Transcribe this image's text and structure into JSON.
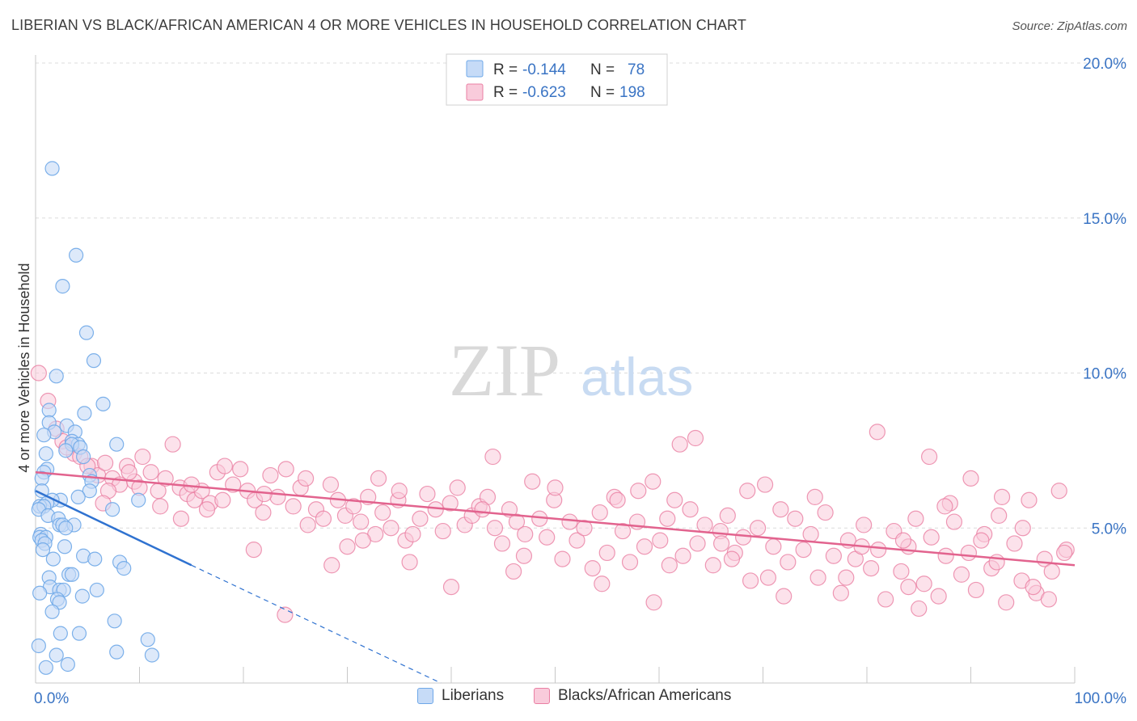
{
  "title": "LIBERIAN VS BLACK/AFRICAN AMERICAN 4 OR MORE VEHICLES IN HOUSEHOLD CORRELATION CHART",
  "source": "Source: ZipAtlas.com",
  "watermark": {
    "zip": "ZIP",
    "atlas": "atlas"
  },
  "stats_legend": [
    {
      "r_label": "R = ",
      "r_value": "-0.144",
      "n_label": "N = ",
      "n_value": "78",
      "color": "#6fa8e8",
      "fill": "#c6dbf7"
    },
    {
      "r_label": "R = ",
      "r_value": "-0.623",
      "n_label": "N = ",
      "n_value": "198",
      "color": "#ea7fa3",
      "fill": "#f9cbdb"
    }
  ],
  "chart_data": {
    "type": "scatter",
    "title": "LIBERIAN VS BLACK/AFRICAN AMERICAN 4 OR MORE VEHICLES IN HOUSEHOLD CORRELATION CHART",
    "xlabel": "",
    "ylabel": "4 or more Vehicles in Household",
    "xlim": [
      0,
      100
    ],
    "ylim": [
      0,
      20
    ],
    "x_tick_labels": [
      "0.0%",
      "100.0%"
    ],
    "y_ticks": [
      5,
      10,
      15,
      20
    ],
    "y_tick_labels": [
      "5.0%",
      "10.0%",
      "15.0%",
      "20.0%"
    ],
    "grid": true,
    "legend_position": "bottom",
    "series": [
      {
        "name": "Liberians",
        "color": "#6fa8e8",
        "fill": "#c6dbf7",
        "trend": {
          "x": [
            0,
            15
          ],
          "y": [
            6.2,
            3.8
          ],
          "dashed_to": [
            39,
            0
          ]
        },
        "points": [
          [
            1.6,
            16.6
          ],
          [
            3.9,
            13.8
          ],
          [
            2.6,
            12.8
          ],
          [
            4.9,
            11.3
          ],
          [
            5.6,
            10.4
          ],
          [
            2.0,
            9.9
          ],
          [
            6.5,
            9.0
          ],
          [
            1.3,
            8.8
          ],
          [
            4.7,
            8.7
          ],
          [
            1.3,
            8.4
          ],
          [
            3.0,
            8.3
          ],
          [
            1.8,
            8.1
          ],
          [
            0.8,
            8.0
          ],
          [
            3.8,
            8.1
          ],
          [
            3.5,
            7.8
          ],
          [
            7.8,
            7.7
          ],
          [
            4.1,
            7.7
          ],
          [
            3.5,
            7.7
          ],
          [
            4.3,
            7.6
          ],
          [
            2.9,
            7.5
          ],
          [
            1.0,
            7.4
          ],
          [
            4.6,
            7.3
          ],
          [
            1.1,
            6.9
          ],
          [
            0.8,
            6.8
          ],
          [
            0.6,
            6.6
          ],
          [
            5.2,
            6.7
          ],
          [
            5.4,
            6.5
          ],
          [
            0.6,
            6.2
          ],
          [
            5.2,
            6.2
          ],
          [
            4.1,
            6.0
          ],
          [
            2.4,
            5.9
          ],
          [
            1.6,
            5.9
          ],
          [
            1.1,
            5.8
          ],
          [
            0.4,
            5.7
          ],
          [
            0.8,
            5.7
          ],
          [
            0.3,
            5.6
          ],
          [
            7.4,
            5.6
          ],
          [
            9.9,
            5.9
          ],
          [
            1.2,
            5.4
          ],
          [
            2.2,
            5.3
          ],
          [
            2.3,
            5.1
          ],
          [
            2.6,
            5.1
          ],
          [
            3.7,
            5.1
          ],
          [
            2.9,
            5.0
          ],
          [
            0.5,
            4.8
          ],
          [
            0.4,
            4.7
          ],
          [
            1.0,
            4.7
          ],
          [
            0.6,
            4.6
          ],
          [
            0.9,
            4.5
          ],
          [
            0.7,
            4.3
          ],
          [
            2.8,
            4.4
          ],
          [
            4.6,
            4.1
          ],
          [
            5.7,
            4.0
          ],
          [
            1.7,
            4.0
          ],
          [
            8.1,
            3.9
          ],
          [
            8.5,
            3.7
          ],
          [
            3.2,
            3.5
          ],
          [
            3.5,
            3.5
          ],
          [
            1.3,
            3.4
          ],
          [
            1.4,
            3.1
          ],
          [
            2.3,
            3.0
          ],
          [
            2.7,
            3.0
          ],
          [
            5.9,
            3.0
          ],
          [
            0.4,
            2.9
          ],
          [
            4.5,
            2.8
          ],
          [
            2.1,
            2.7
          ],
          [
            2.3,
            2.6
          ],
          [
            1.6,
            2.3
          ],
          [
            7.6,
            2.0
          ],
          [
            2.4,
            1.6
          ],
          [
            4.2,
            1.6
          ],
          [
            10.8,
            1.4
          ],
          [
            7.8,
            1.0
          ],
          [
            11.2,
            0.9
          ],
          [
            2.0,
            0.9
          ],
          [
            1.0,
            0.5
          ],
          [
            0.3,
            1.2
          ],
          [
            3.1,
            0.6
          ]
        ]
      },
      {
        "name": "Blacks/African Americans",
        "color": "#ea7fa3",
        "fill": "#f9cbdb",
        "trend": {
          "x": [
            0,
            100
          ],
          "y": [
            6.8,
            3.8
          ]
        },
        "points": [
          [
            0.3,
            10.0
          ],
          [
            1.2,
            9.1
          ],
          [
            2.0,
            8.2
          ],
          [
            2.6,
            7.8
          ],
          [
            3.7,
            7.4
          ],
          [
            3.0,
            7.6
          ],
          [
            4.3,
            7.3
          ],
          [
            5.4,
            7.0
          ],
          [
            6.0,
            6.7
          ],
          [
            6.7,
            7.1
          ],
          [
            7.4,
            6.6
          ],
          [
            8.1,
            6.4
          ],
          [
            8.8,
            7.0
          ],
          [
            9.5,
            6.5
          ],
          [
            10.3,
            7.3
          ],
          [
            11.1,
            6.8
          ],
          [
            11.8,
            6.2
          ],
          [
            12.5,
            6.6
          ],
          [
            13.2,
            7.7
          ],
          [
            13.9,
            6.3
          ],
          [
            14.6,
            6.1
          ],
          [
            15.3,
            5.9
          ],
          [
            16.0,
            6.2
          ],
          [
            16.8,
            5.8
          ],
          [
            17.5,
            6.8
          ],
          [
            18.2,
            7.0
          ],
          [
            19.0,
            6.4
          ],
          [
            19.7,
            6.9
          ],
          [
            20.4,
            6.2
          ],
          [
            21.1,
            5.9
          ],
          [
            21.9,
            5.5
          ],
          [
            22.6,
            6.7
          ],
          [
            23.3,
            6.0
          ],
          [
            24.1,
            6.9
          ],
          [
            24.8,
            5.7
          ],
          [
            25.5,
            6.3
          ],
          [
            26.2,
            5.1
          ],
          [
            27.0,
            5.6
          ],
          [
            27.7,
            5.3
          ],
          [
            28.4,
            6.4
          ],
          [
            29.1,
            5.9
          ],
          [
            29.8,
            5.4
          ],
          [
            30.6,
            5.7
          ],
          [
            31.3,
            5.2
          ],
          [
            32.0,
            6.0
          ],
          [
            32.7,
            4.8
          ],
          [
            33.4,
            5.5
          ],
          [
            34.2,
            5.0
          ],
          [
            34.9,
            5.9
          ],
          [
            35.6,
            4.6
          ],
          [
            36.3,
            4.8
          ],
          [
            37.0,
            5.3
          ],
          [
            37.7,
            6.1
          ],
          [
            38.5,
            5.6
          ],
          [
            39.2,
            4.9
          ],
          [
            39.9,
            5.8
          ],
          [
            40.6,
            6.3
          ],
          [
            41.3,
            5.1
          ],
          [
            42.0,
            5.4
          ],
          [
            42.7,
            5.7
          ],
          [
            43.5,
            6.0
          ],
          [
            44.2,
            5.0
          ],
          [
            44.9,
            4.5
          ],
          [
            45.6,
            5.6
          ],
          [
            46.3,
            5.2
          ],
          [
            47.1,
            4.8
          ],
          [
            47.8,
            6.5
          ],
          [
            48.5,
            5.3
          ],
          [
            49.2,
            4.7
          ],
          [
            49.9,
            5.9
          ],
          [
            50.7,
            4.0
          ],
          [
            51.4,
            5.2
          ],
          [
            52.1,
            4.6
          ],
          [
            52.8,
            5.0
          ],
          [
            53.6,
            3.7
          ],
          [
            54.3,
            5.5
          ],
          [
            55.0,
            4.2
          ],
          [
            55.7,
            6.0
          ],
          [
            56.5,
            4.9
          ],
          [
            57.2,
            3.9
          ],
          [
            57.9,
            5.2
          ],
          [
            58.6,
            4.4
          ],
          [
            59.4,
            6.5
          ],
          [
            60.1,
            4.6
          ],
          [
            60.8,
            5.3
          ],
          [
            61.5,
            5.9
          ],
          [
            62.3,
            4.1
          ],
          [
            63.0,
            5.6
          ],
          [
            63.7,
            4.5
          ],
          [
            64.4,
            5.1
          ],
          [
            65.2,
            3.8
          ],
          [
            65.9,
            4.9
          ],
          [
            66.6,
            5.4
          ],
          [
            67.3,
            4.2
          ],
          [
            68.1,
            4.7
          ],
          [
            68.8,
            3.3
          ],
          [
            69.5,
            5.0
          ],
          [
            70.2,
            6.4
          ],
          [
            71.0,
            4.4
          ],
          [
            71.7,
            5.6
          ],
          [
            72.4,
            3.9
          ],
          [
            73.1,
            5.3
          ],
          [
            73.9,
            4.3
          ],
          [
            74.6,
            4.8
          ],
          [
            75.3,
            3.4
          ],
          [
            76.0,
            5.5
          ],
          [
            76.8,
            4.1
          ],
          [
            77.5,
            2.9
          ],
          [
            78.2,
            4.6
          ],
          [
            78.9,
            4.0
          ],
          [
            79.7,
            5.1
          ],
          [
            80.4,
            3.7
          ],
          [
            81.1,
            4.3
          ],
          [
            81.8,
            2.7
          ],
          [
            82.6,
            4.9
          ],
          [
            83.3,
            3.6
          ],
          [
            84.0,
            4.4
          ],
          [
            84.7,
            5.3
          ],
          [
            85.5,
            3.2
          ],
          [
            86.2,
            4.7
          ],
          [
            86.9,
            2.8
          ],
          [
            87.6,
            4.1
          ],
          [
            88.4,
            5.2
          ],
          [
            89.1,
            3.5
          ],
          [
            89.8,
            4.2
          ],
          [
            90.5,
            3.0
          ],
          [
            91.3,
            4.8
          ],
          [
            92.0,
            3.7
          ],
          [
            92.7,
            5.4
          ],
          [
            93.4,
            2.6
          ],
          [
            94.2,
            4.5
          ],
          [
            94.9,
            3.3
          ],
          [
            95.6,
            5.9
          ],
          [
            96.3,
            2.9
          ],
          [
            97.1,
            4.0
          ],
          [
            97.8,
            3.6
          ],
          [
            98.5,
            6.2
          ],
          [
            99.2,
            4.3
          ],
          [
            54.5,
            3.2
          ],
          [
            61.0,
            3.8
          ],
          [
            66.0,
            4.5
          ],
          [
            72.0,
            2.8
          ],
          [
            78.0,
            3.4
          ],
          [
            83.5,
            4.6
          ],
          [
            88.0,
            5.8
          ],
          [
            92.5,
            3.9
          ],
          [
            46.0,
            3.6
          ],
          [
            40.0,
            3.1
          ],
          [
            36.0,
            3.9
          ],
          [
            30.0,
            4.4
          ],
          [
            28.5,
            3.8
          ],
          [
            24.0,
            2.2
          ],
          [
            21.0,
            4.3
          ],
          [
            18.0,
            5.9
          ],
          [
            12.0,
            5.7
          ],
          [
            10.0,
            6.3
          ],
          [
            9.0,
            6.8
          ],
          [
            7.0,
            6.2
          ],
          [
            5.0,
            7.0
          ],
          [
            14.0,
            5.3
          ],
          [
            16.5,
            5.6
          ],
          [
            26.0,
            6.6
          ],
          [
            31.5,
            4.6
          ],
          [
            35.0,
            6.2
          ],
          [
            44.0,
            7.3
          ],
          [
            58.0,
            6.2
          ],
          [
            62.0,
            7.7
          ],
          [
            67.0,
            4.0
          ],
          [
            75.0,
            6.0
          ],
          [
            81.0,
            8.1
          ],
          [
            86.0,
            7.3
          ],
          [
            90.0,
            6.6
          ],
          [
            95.0,
            5.0
          ],
          [
            97.5,
            2.7
          ],
          [
            93.0,
            6.0
          ],
          [
            84.0,
            3.1
          ],
          [
            79.5,
            4.4
          ],
          [
            70.5,
            3.4
          ],
          [
            63.5,
            7.9
          ],
          [
            56.0,
            5.9
          ],
          [
            50.0,
            6.3
          ],
          [
            43.0,
            5.6
          ],
          [
            33.0,
            6.6
          ],
          [
            22.0,
            6.1
          ],
          [
            15.0,
            6.4
          ],
          [
            6.5,
            5.8
          ],
          [
            99.0,
            4.2
          ],
          [
            96.0,
            3.1
          ],
          [
            91.0,
            4.6
          ],
          [
            87.5,
            5.7
          ],
          [
            85.0,
            2.4
          ],
          [
            68.5,
            6.2
          ],
          [
            59.5,
            2.6
          ],
          [
            47.0,
            4.1
          ]
        ]
      }
    ]
  }
}
